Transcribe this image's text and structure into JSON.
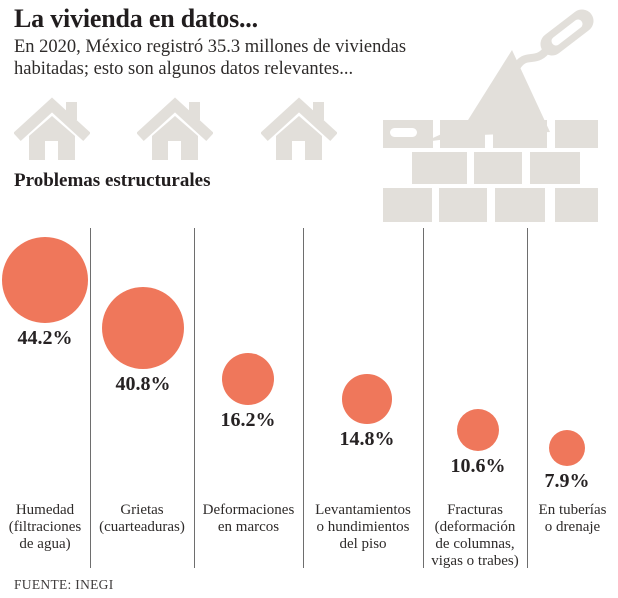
{
  "header": {
    "title": "La vivienda en datos...",
    "subtitle_line1": "En 2020, México registró 35.3 millones de viviendas",
    "subtitle_line2": "habitadas; esto son algunos datos relevantes...",
    "section_title": "Problemas estructurales"
  },
  "chart_data": {
    "type": "bubble",
    "title": "Problemas estructurales",
    "unit": "%",
    "sorted": "descending",
    "categories": [
      "Humedad (filtraciones de agua)",
      "Grietas (cuarteaduras)",
      "Deformaciones en marcos",
      "Levantamientos o hundimientos del piso",
      "Fracturas (deformación de columnas, vigas o trabes)",
      "En tuberías o drenaje"
    ],
    "values": [
      44.2,
      40.8,
      16.2,
      14.8,
      10.6,
      7.9
    ],
    "value_labels": [
      "44.2%",
      "40.8%",
      "16.2%",
      "14.8%",
      "10.6%",
      "7.9%"
    ],
    "label_lines": [
      [
        "Humedad",
        "(filtraciones",
        "de agua)"
      ],
      [
        "Grietas",
        "(cuarteaduras)"
      ],
      [
        "Deformaciones",
        "en marcos"
      ],
      [
        "Levantamientos",
        "o hundimientos",
        "del piso"
      ],
      [
        "Fracturas",
        "(deformación",
        "de columnas,",
        "vigas o trabes)"
      ],
      [
        "En tuberías",
        "o drenaje"
      ]
    ],
    "bubble_color": "#ef775b",
    "legend": "none",
    "grid": "off"
  },
  "decorations": {
    "house_icons": 3,
    "construction_icon": "trowel-and-bricks"
  },
  "footer": {
    "source": "FUENTE: INEGI"
  },
  "colors": {
    "bubble": "#ef775b",
    "icon_gray": "#e2dfda",
    "text_dark": "#262223",
    "divider": "#6e6e6e",
    "background": "#ffffff"
  }
}
